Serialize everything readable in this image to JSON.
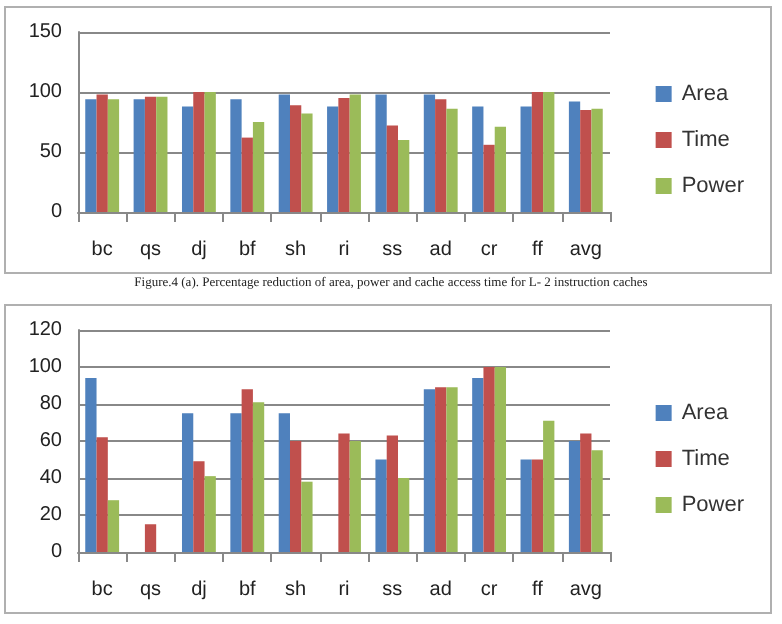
{
  "chart_data": [
    {
      "type": "bar",
      "categories": [
        "bc",
        "qs",
        "dj",
        "bf",
        "sh",
        "ri",
        "ss",
        "ad",
        "cr",
        "ff",
        "avg"
      ],
      "ylim": [
        0,
        150
      ],
      "yticks": [
        0,
        50,
        100,
        150
      ],
      "grid": "y",
      "legend": "right",
      "series": [
        {
          "name": "Area",
          "color": "#4f81bd",
          "values": [
            94,
            94,
            88,
            94,
            98,
            88,
            98,
            98,
            88,
            88,
            92
          ]
        },
        {
          "name": "Time",
          "color": "#c0504d",
          "values": [
            98,
            96,
            100,
            62,
            89,
            95,
            72,
            94,
            56,
            100,
            85
          ]
        },
        {
          "name": "Power",
          "color": "#9bbb59",
          "values": [
            94,
            96,
            100,
            75,
            82,
            98,
            60,
            86,
            71,
            100,
            86
          ]
        }
      ],
      "annotations": [
        "Figure.4 (a). Percentage reduction of area, power and cache access time for L- 2 instruction caches"
      ]
    },
    {
      "type": "bar",
      "categories": [
        "bc",
        "qs",
        "dj",
        "bf",
        "sh",
        "ri",
        "ss",
        "ad",
        "cr",
        "ff",
        "avg"
      ],
      "ylim": [
        0,
        120
      ],
      "yticks": [
        0,
        20,
        40,
        60,
        80,
        100,
        120
      ],
      "grid": "y",
      "legend": "right",
      "series": [
        {
          "name": "Area",
          "color": "#4f81bd",
          "values": [
            94,
            0,
            75,
            75,
            75,
            0,
            50,
            88,
            94,
            50,
            60
          ]
        },
        {
          "name": "Time",
          "color": "#c0504d",
          "values": [
            62,
            15,
            49,
            88,
            60,
            64,
            63,
            89,
            100,
            50,
            64
          ]
        },
        {
          "name": "Power",
          "color": "#9bbb59",
          "values": [
            28,
            0,
            41,
            81,
            38,
            60,
            40,
            89,
            100,
            71,
            55
          ]
        }
      ]
    }
  ]
}
